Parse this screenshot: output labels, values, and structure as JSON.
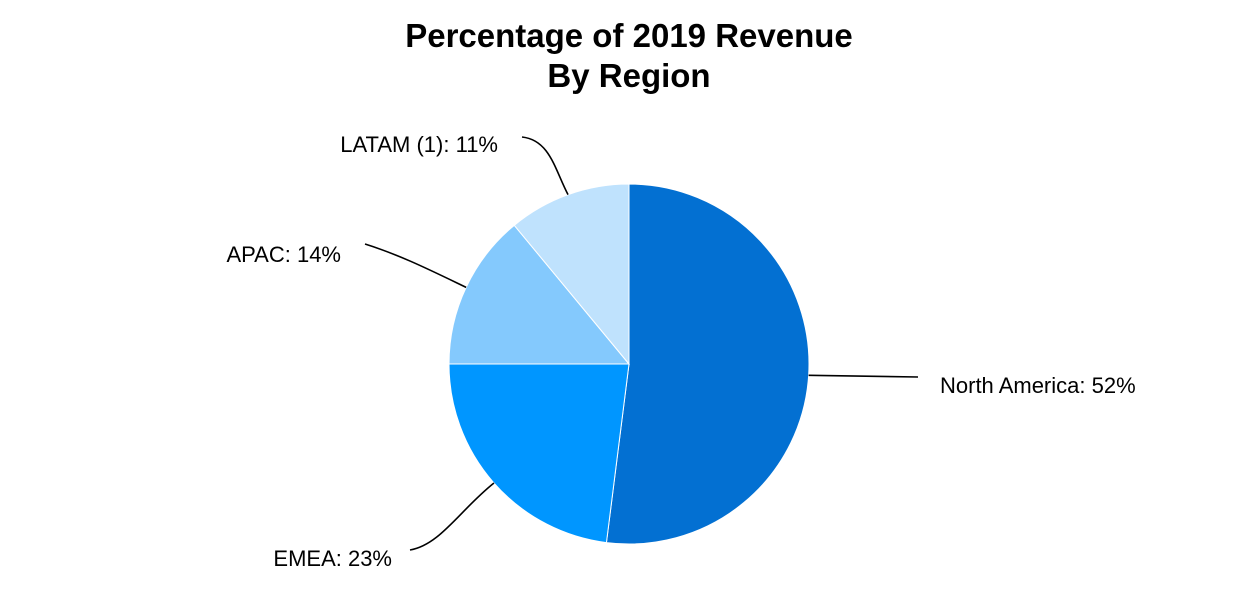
{
  "chart_data": {
    "type": "pie",
    "title": [
      "Percentage of 2019 Revenue",
      "By Region"
    ],
    "start_angle_deg": 0,
    "direction": "clockwise",
    "slices": [
      {
        "name": "North America",
        "value": 52,
        "label": "North America: 52%",
        "color": "#0370D2"
      },
      {
        "name": "EMEA",
        "value": 23,
        "label": "EMEA: 23%",
        "color": "#0096FF"
      },
      {
        "name": "APAC",
        "value": 14,
        "label": "APAC: 14%",
        "color": "#84C9FD"
      },
      {
        "name": "LATAM (1)",
        "value": 11,
        "label": "LATAM (1): 11%",
        "color": "#BFE2FD"
      }
    ]
  }
}
